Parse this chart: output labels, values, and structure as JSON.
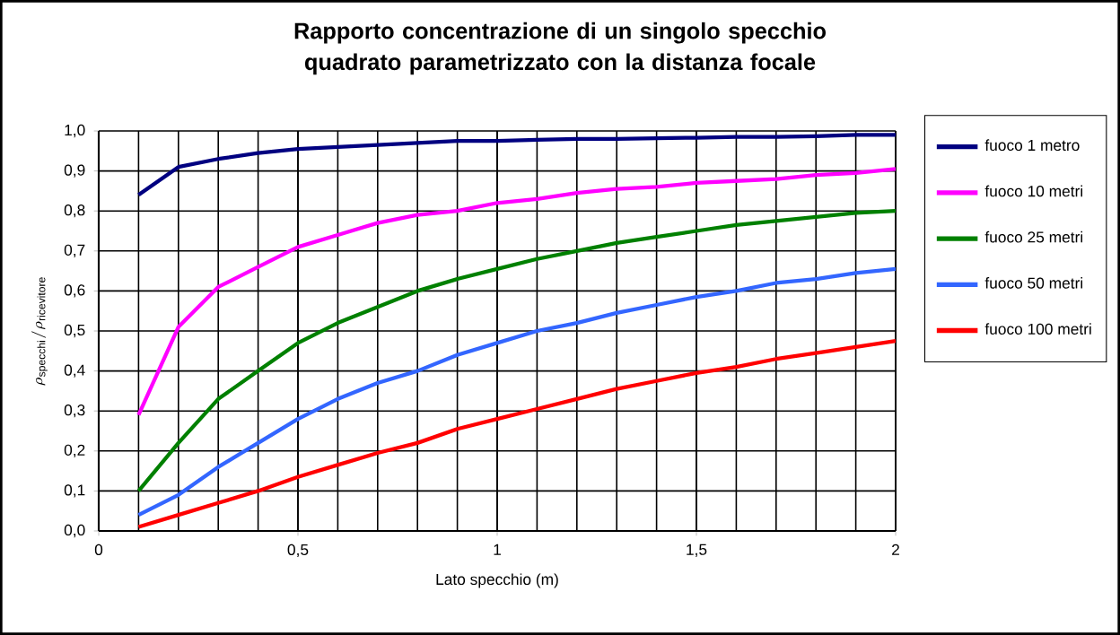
{
  "chart_data": {
    "type": "line",
    "title": "Rapporto concentrazione di un singolo specchio  quadrato parametrizzato con la distanza focale",
    "xlabel": "Lato specchio (m)",
    "ylabel": "\\rho_{\\mathrm{specchi}}/\\rho_{\\mathrm{ricevitore}}",
    "x": [
      0.1,
      0.2,
      0.3,
      0.4,
      0.5,
      0.6,
      0.7,
      0.8,
      0.9,
      1.0,
      1.1,
      1.2,
      1.3,
      1.4,
      1.5,
      1.6,
      1.7,
      1.8,
      1.9,
      2.0
    ],
    "series": [
      {
        "name": "fuoco 1 metro",
        "color": "#000080",
        "values": [
          0.84,
          0.91,
          0.93,
          0.945,
          0.955,
          0.96,
          0.965,
          0.97,
          0.975,
          0.975,
          0.978,
          0.98,
          0.98,
          0.982,
          0.983,
          0.985,
          0.985,
          0.987,
          0.99,
          0.99
        ]
      },
      {
        "name": "fuoco 10 metri",
        "color": "#ff00ff",
        "values": [
          0.29,
          0.51,
          0.61,
          0.66,
          0.71,
          0.74,
          0.77,
          0.79,
          0.8,
          0.82,
          0.83,
          0.845,
          0.855,
          0.86,
          0.87,
          0.875,
          0.88,
          0.89,
          0.895,
          0.905
        ]
      },
      {
        "name": "fuoco 25 metri",
        "color": "#008000",
        "values": [
          0.1,
          0.22,
          0.33,
          0.4,
          0.47,
          0.52,
          0.56,
          0.6,
          0.63,
          0.655,
          0.68,
          0.7,
          0.72,
          0.735,
          0.75,
          0.765,
          0.775,
          0.785,
          0.795,
          0.8
        ]
      },
      {
        "name": "fuoco 50 metri",
        "color": "#3366ff",
        "values": [
          0.04,
          0.09,
          0.16,
          0.22,
          0.28,
          0.33,
          0.37,
          0.4,
          0.44,
          0.47,
          0.5,
          0.52,
          0.545,
          0.565,
          0.585,
          0.6,
          0.62,
          0.63,
          0.645,
          0.655
        ]
      },
      {
        "name": "fuoco 100 metri",
        "color": "#ff0000",
        "values": [
          0.01,
          0.04,
          0.07,
          0.1,
          0.135,
          0.165,
          0.195,
          0.22,
          0.255,
          0.28,
          0.305,
          0.33,
          0.355,
          0.375,
          0.395,
          0.41,
          0.43,
          0.445,
          0.46,
          0.475
        ]
      }
    ],
    "xlim": [
      0,
      2
    ],
    "ylim": [
      0,
      1
    ],
    "xticks": [
      0,
      {
        "value": 0.5,
        "label": "0,5"
      },
      1,
      {
        "value": 1.5,
        "label": "1,5"
      },
      2
    ],
    "yticks": [
      {
        "value": 0,
        "label": "0,0"
      },
      {
        "value": 0.1,
        "label": "0,1"
      },
      {
        "value": 0.2,
        "label": "0,2"
      },
      {
        "value": 0.3,
        "label": "0,3"
      },
      {
        "value": 0.4,
        "label": "0,4"
      },
      {
        "value": 0.5,
        "label": "0,5"
      },
      {
        "value": 0.6,
        "label": "0,6"
      },
      {
        "value": 0.7,
        "label": "0,7"
      },
      {
        "value": 0.8,
        "label": "0,8"
      },
      {
        "value": 0.9,
        "label": "0,9"
      },
      {
        "value": 1,
        "label": "1,0"
      }
    ],
    "grid": true,
    "legend": "right",
    "marker": "none",
    "line_style": "solid"
  }
}
